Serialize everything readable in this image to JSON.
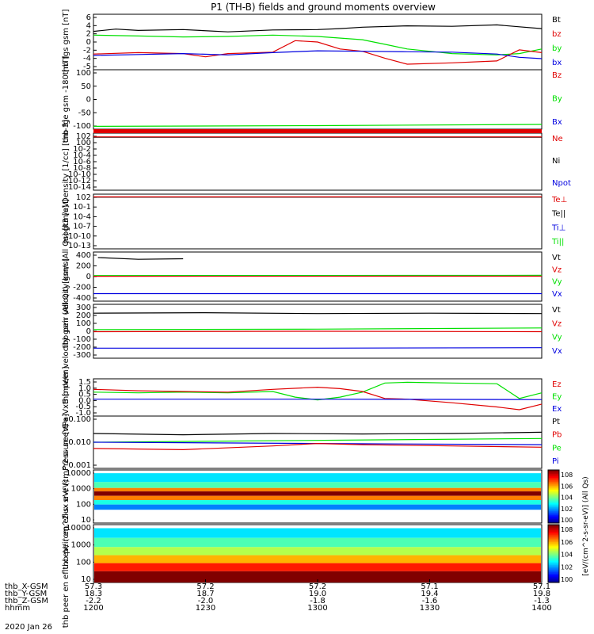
{
  "title": "P1 (TH-B) fields and ground moments overview",
  "date_label": "2020 Jan 26",
  "x_axis": {
    "ticks": [
      {
        "hhmm": "1200",
        "x": "57.3",
        "y": "18.3",
        "z": "-2.2"
      },
      {
        "hhmm": "1230",
        "x": "57.2",
        "y": "18.7",
        "z": "-2.0"
      },
      {
        "hhmm": "1300",
        "x": "57.2",
        "y": "19.0",
        "z": "-1.8"
      },
      {
        "hhmm": "1330",
        "x": "57.1",
        "y": "19.4",
        "z": "-1.6"
      },
      {
        "hhmm": "1400",
        "x": "57.1",
        "y": "19.8",
        "z": "-1.3"
      }
    ],
    "row_labels": [
      "thb_X-GSM",
      "thb_Y-GSM",
      "thb_Z-GSM",
      "hhmm"
    ]
  },
  "colorbar": {
    "label": "[eV/(cm^2-s-sr-eV)] (All Qs)",
    "ticks_top": [
      "10^8",
      "10^6",
      "10^4",
      "10^2",
      "10^0"
    ],
    "ticks_bottom": [
      "10^8",
      "10^6",
      "10^4",
      "10^2",
      "10^0"
    ]
  },
  "colors": {
    "black": "#000000",
    "red": "#e00000",
    "green": "#00e000",
    "blue": "#0000e0"
  },
  "chart_data": [
    {
      "id": "fgs",
      "type": "line",
      "ylabel": "thb fgs gsm [nT]",
      "ylim": [
        -5,
        7
      ],
      "yticks": [
        "6",
        "4",
        "2",
        "0",
        "-2",
        "-4",
        "-5"
      ],
      "legend": [
        {
          "name": "Bt",
          "color": "#000000"
        },
        {
          "name": "bz",
          "color": "#e00000"
        },
        {
          "name": "by",
          "color": "#00e000"
        },
        {
          "name": "bx",
          "color": "#0000e0"
        }
      ],
      "series": [
        {
          "name": "Bt",
          "color": "#000000",
          "x": [
            0,
            0.05,
            0.1,
            0.2,
            0.3,
            0.4,
            0.5,
            0.55,
            0.6,
            0.7,
            0.8,
            0.9,
            0.95,
            1
          ],
          "y": [
            3.3,
            3.8,
            3.5,
            3.7,
            3.2,
            3.6,
            3.7,
            3.9,
            4.2,
            4.5,
            4.4,
            4.7,
            4.3,
            3.9
          ]
        },
        {
          "name": "by",
          "color": "#00e000",
          "x": [
            0,
            0.1,
            0.2,
            0.3,
            0.4,
            0.5,
            0.6,
            0.65,
            0.7,
            0.75,
            0.8,
            0.9,
            0.95,
            1
          ],
          "y": [
            2.5,
            2.3,
            2.1,
            2.2,
            2.5,
            2.2,
            1.5,
            0.5,
            -0.5,
            -1,
            -1.5,
            -1.8,
            -1.5,
            -0.5
          ]
        },
        {
          "name": "bz",
          "color": "#e00000",
          "x": [
            0,
            0.1,
            0.2,
            0.25,
            0.3,
            0.4,
            0.45,
            0.5,
            0.55,
            0.6,
            0.65,
            0.7,
            0.8,
            0.9,
            0.95,
            1
          ],
          "y": [
            -1.6,
            -1.3,
            -1.5,
            -2.2,
            -1.5,
            -1.2,
            1.3,
            1,
            -0.5,
            -1,
            -2.5,
            -3.8,
            -3.5,
            -3.1,
            -0.7,
            -1.3
          ]
        },
        {
          "name": "bx",
          "color": "#0000e0",
          "x": [
            0,
            0.1,
            0.2,
            0.3,
            0.4,
            0.5,
            0.6,
            0.7,
            0.8,
            0.9,
            0.95,
            1
          ],
          "y": [
            -1.9,
            -1.7,
            -1.5,
            -1.8,
            -1.3,
            -0.9,
            -1,
            -1.1,
            -1.2,
            -1.6,
            -2.3,
            -2.6
          ]
        }
      ]
    },
    {
      "id": "fge",
      "type": "line",
      "ylabel": "thb fge gsm -180 [nT]",
      "ylim": [
        -140,
        110
      ],
      "yticks": [
        "100",
        "50",
        "0",
        "-50",
        "-100"
      ],
      "legend": [
        {
          "name": "Bz",
          "color": "#e00000"
        },
        {
          "name": "By",
          "color": "#00e000"
        },
        {
          "name": "Bx",
          "color": "#0000e0"
        }
      ],
      "series": [
        {
          "name": "By",
          "color": "#00e000",
          "x": [
            0,
            0.5,
            1
          ],
          "y": [
            -128,
            -125,
            -120
          ]
        }
      ]
    },
    {
      "id": "density",
      "type": "line",
      "ylabel": "Density [1/cc] [cm-3]",
      "ylim": [
        -15,
        2
      ],
      "log": true,
      "yticks": [
        "10^2",
        "10^0",
        "10^-2",
        "10^-4",
        "10^-6",
        "10^-8",
        "10^-10",
        "10^-12",
        "10^-14"
      ],
      "legend": [
        {
          "name": "Ne",
          "color": "#e00000"
        },
        {
          "name": "Ni",
          "color": "#000000"
        },
        {
          "name": "Npot",
          "color": "#0000e0"
        }
      ],
      "series": [
        {
          "name": "Ni",
          "color": "#000000",
          "x": [
            0,
            1
          ],
          "y": [
            0.8,
            0.8
          ]
        },
        {
          "name": "Ne",
          "color": "#e00000",
          "x": [
            0,
            1
          ],
          "y": [
            0.9,
            0.9
          ]
        }
      ]
    },
    {
      "id": "temp",
      "type": "line",
      "ylabel": "mogt3 [eV]",
      "ylim": [
        -15,
        3
      ],
      "log": true,
      "yticks": [
        "10^2",
        "10^-1",
        "10^-4",
        "10^-7",
        "10^-10",
        "10^-13"
      ],
      "legend": [
        {
          "name": "Te⊥",
          "color": "#e00000"
        },
        {
          "name": "Te||",
          "color": "#000000"
        },
        {
          "name": "Ti⊥",
          "color": "#0000e0"
        },
        {
          "name": "Ti||",
          "color": "#00e000"
        }
      ],
      "series": [
        {
          "name": "Te||",
          "color": "#000000",
          "x": [
            0,
            1
          ],
          "y": [
            2,
            2
          ]
        },
        {
          "name": "Te⊥",
          "color": "#e00000",
          "x": [
            0,
            1
          ],
          "y": [
            2.1,
            2.1
          ]
        }
      ]
    },
    {
      "id": "peir",
      "type": "line",
      "ylabel": "thb peir velocity gsm (All Qs) [km/s]",
      "ylim": [
        -450,
        430
      ],
      "yticks": [
        "400",
        "200",
        "0",
        "-200",
        "-400"
      ],
      "legend": [
        {
          "name": "Vt",
          "color": "#000000"
        },
        {
          "name": "Vz",
          "color": "#e00000"
        },
        {
          "name": "Vy",
          "color": "#00e000"
        },
        {
          "name": "Vx",
          "color": "#0000e0"
        }
      ],
      "series": [
        {
          "name": "Vt",
          "color": "#000000",
          "x": [
            0.01,
            0.1,
            0.2
          ],
          "y": [
            330,
            300,
            310
          ]
        },
        {
          "name": "Vy",
          "color": "#00e000",
          "x": [
            0,
            1
          ],
          "y": [
            8,
            12
          ]
        },
        {
          "name": "Vz",
          "color": "#e00000",
          "x": [
            0,
            1
          ],
          "y": [
            -5,
            -3
          ]
        },
        {
          "name": "Vx",
          "color": "#0000e0",
          "x": [
            0,
            1
          ],
          "y": [
            -315,
            -315
          ]
        }
      ]
    },
    {
      "id": "peer",
      "type": "line",
      "ylabel": "thb peer velocity gsm (All Qs) [km/s]",
      "ylim": [
        -320,
        320
      ],
      "yticks": [
        "300",
        "200",
        "100",
        "0",
        "-100",
        "-200",
        "-300"
      ],
      "legend": [
        {
          "name": "Vt",
          "color": "#000000"
        },
        {
          "name": "Vz",
          "color": "#e00000"
        },
        {
          "name": "Vy",
          "color": "#00e000"
        },
        {
          "name": "Vx",
          "color": "#0000e0"
        }
      ],
      "series": [
        {
          "name": "Vt",
          "color": "#000000",
          "x": [
            0,
            0.25,
            0.5,
            0.75,
            1
          ],
          "y": [
            215,
            220,
            210,
            215,
            210
          ]
        },
        {
          "name": "Vy",
          "color": "#00e000",
          "x": [
            0,
            0.5,
            1
          ],
          "y": [
            20,
            25,
            40
          ]
        },
        {
          "name": "Vz",
          "color": "#e00000",
          "x": [
            0,
            0.5,
            1
          ],
          "y": [
            -5,
            0,
            -5
          ]
        },
        {
          "name": "Vx",
          "color": "#0000e0",
          "x": [
            0,
            0.5,
            1
          ],
          "y": [
            -200,
            -200,
            -195
          ]
        }
      ]
    },
    {
      "id": "efield",
      "type": "line",
      "ylabel": "E=-VxB [mV/m]",
      "ylim": [
        -1.15,
        1.5
      ],
      "yticks": [
        "1.5",
        "1.0",
        "0.5",
        "0.0",
        "-0.5",
        "-1.0"
      ],
      "legend": [
        {
          "name": "Ez",
          "color": "#e00000"
        },
        {
          "name": "Ey",
          "color": "#00e000"
        },
        {
          "name": "Ex",
          "color": "#0000e0"
        }
      ],
      "series": [
        {
          "name": "Ey",
          "color": "#00e000",
          "x": [
            0,
            0.1,
            0.2,
            0.3,
            0.4,
            0.45,
            0.5,
            0.55,
            0.6,
            0.65,
            0.7,
            0.8,
            0.9,
            0.95,
            1
          ],
          "y": [
            0.55,
            0.5,
            0.55,
            0.5,
            0.6,
            0.2,
            0,
            0.2,
            0.55,
            1.2,
            1.25,
            1.2,
            1.15,
            0.1,
            0.5
          ]
        },
        {
          "name": "Ez",
          "color": "#e00000",
          "x": [
            0,
            0.1,
            0.2,
            0.3,
            0.4,
            0.5,
            0.55,
            0.6,
            0.65,
            0.7,
            0.8,
            0.9,
            0.95,
            1
          ],
          "y": [
            0.75,
            0.65,
            0.6,
            0.55,
            0.75,
            0.9,
            0.8,
            0.6,
            0.1,
            0.05,
            -0.2,
            -0.5,
            -0.7,
            -0.3
          ]
        },
        {
          "name": "Ex",
          "color": "#0000e0",
          "x": [
            0,
            0.5,
            1
          ],
          "y": [
            0.05,
            0.05,
            0.02
          ]
        }
      ]
    },
    {
      "id": "pressure",
      "type": "line",
      "ylabel": "Pressure [nPa]",
      "ylim": [
        -3,
        -0.9
      ],
      "log": true,
      "yticks": [
        "0.100",
        "0.010",
        "0.001"
      ],
      "legend": [
        {
          "name": "Pt",
          "color": "#000000"
        },
        {
          "name": "Pb",
          "color": "#e00000"
        },
        {
          "name": "Pe",
          "color": "#00e000"
        },
        {
          "name": "Pi",
          "color": "#0000e0"
        }
      ],
      "series": [
        {
          "name": "Pt",
          "color": "#000000",
          "x": [
            0,
            0.2,
            0.4,
            0.6,
            0.8,
            1
          ],
          "y": [
            -1.6,
            -1.65,
            -1.6,
            -1.62,
            -1.6,
            -1.55
          ]
        },
        {
          "name": "Pe",
          "color": "#00e000",
          "x": [
            0,
            1
          ],
          "y": [
            -1.95,
            -1.8
          ]
        },
        {
          "name": "Pi",
          "color": "#0000e0",
          "x": [
            0,
            0.5,
            1
          ],
          "y": [
            -1.95,
            -2,
            -2.05
          ]
        },
        {
          "name": "Pb",
          "color": "#e00000",
          "x": [
            0,
            0.2,
            0.4,
            0.5,
            0.6,
            0.8,
            1
          ],
          "y": [
            -2.2,
            -2.25,
            -2.1,
            -2.0,
            -2.05,
            -2.1,
            -2.15
          ]
        }
      ]
    },
    {
      "id": "peir_eflux",
      "type": "heatmap",
      "ylabel": "thb peir en eflux eV/ (cm^2-s- sr-eV)",
      "ylim": [
        5,
        20000
      ],
      "log": true,
      "yticks": [
        "10000",
        "1000",
        "100",
        "10"
      ],
      "bands": [
        {
          "ymin": 3000,
          "ymax": 12000,
          "level": 0.35
        },
        {
          "ymin": 1200,
          "ymax": 3000,
          "level": 0.45
        },
        {
          "ymin": 700,
          "ymax": 1200,
          "level": 0.75
        },
        {
          "ymin": 350,
          "ymax": 700,
          "level": 1.0
        },
        {
          "ymin": 180,
          "ymax": 350,
          "level": 0.75
        },
        {
          "ymin": 90,
          "ymax": 180,
          "level": 0.4
        },
        {
          "ymin": 40,
          "ymax": 90,
          "level": 0.25
        }
      ]
    },
    {
      "id": "peer_eflux",
      "type": "heatmap",
      "ylabel": "thb peer en eflux eV/ (cm^2-s- sr-eV)",
      "ylim": [
        5,
        20000
      ],
      "log": true,
      "yticks": [
        "10000",
        "1000",
        "100",
        "10"
      ],
      "bands": [
        {
          "ymin": 3000,
          "ymax": 12000,
          "level": 0.35
        },
        {
          "ymin": 800,
          "ymax": 3000,
          "level": 0.45
        },
        {
          "ymin": 250,
          "ymax": 800,
          "level": 0.55
        },
        {
          "ymin": 80,
          "ymax": 250,
          "level": 0.7
        },
        {
          "ymin": 25,
          "ymax": 80,
          "level": 0.85
        },
        {
          "ymin": 5,
          "ymax": 25,
          "level": 1.0
        }
      ]
    }
  ]
}
